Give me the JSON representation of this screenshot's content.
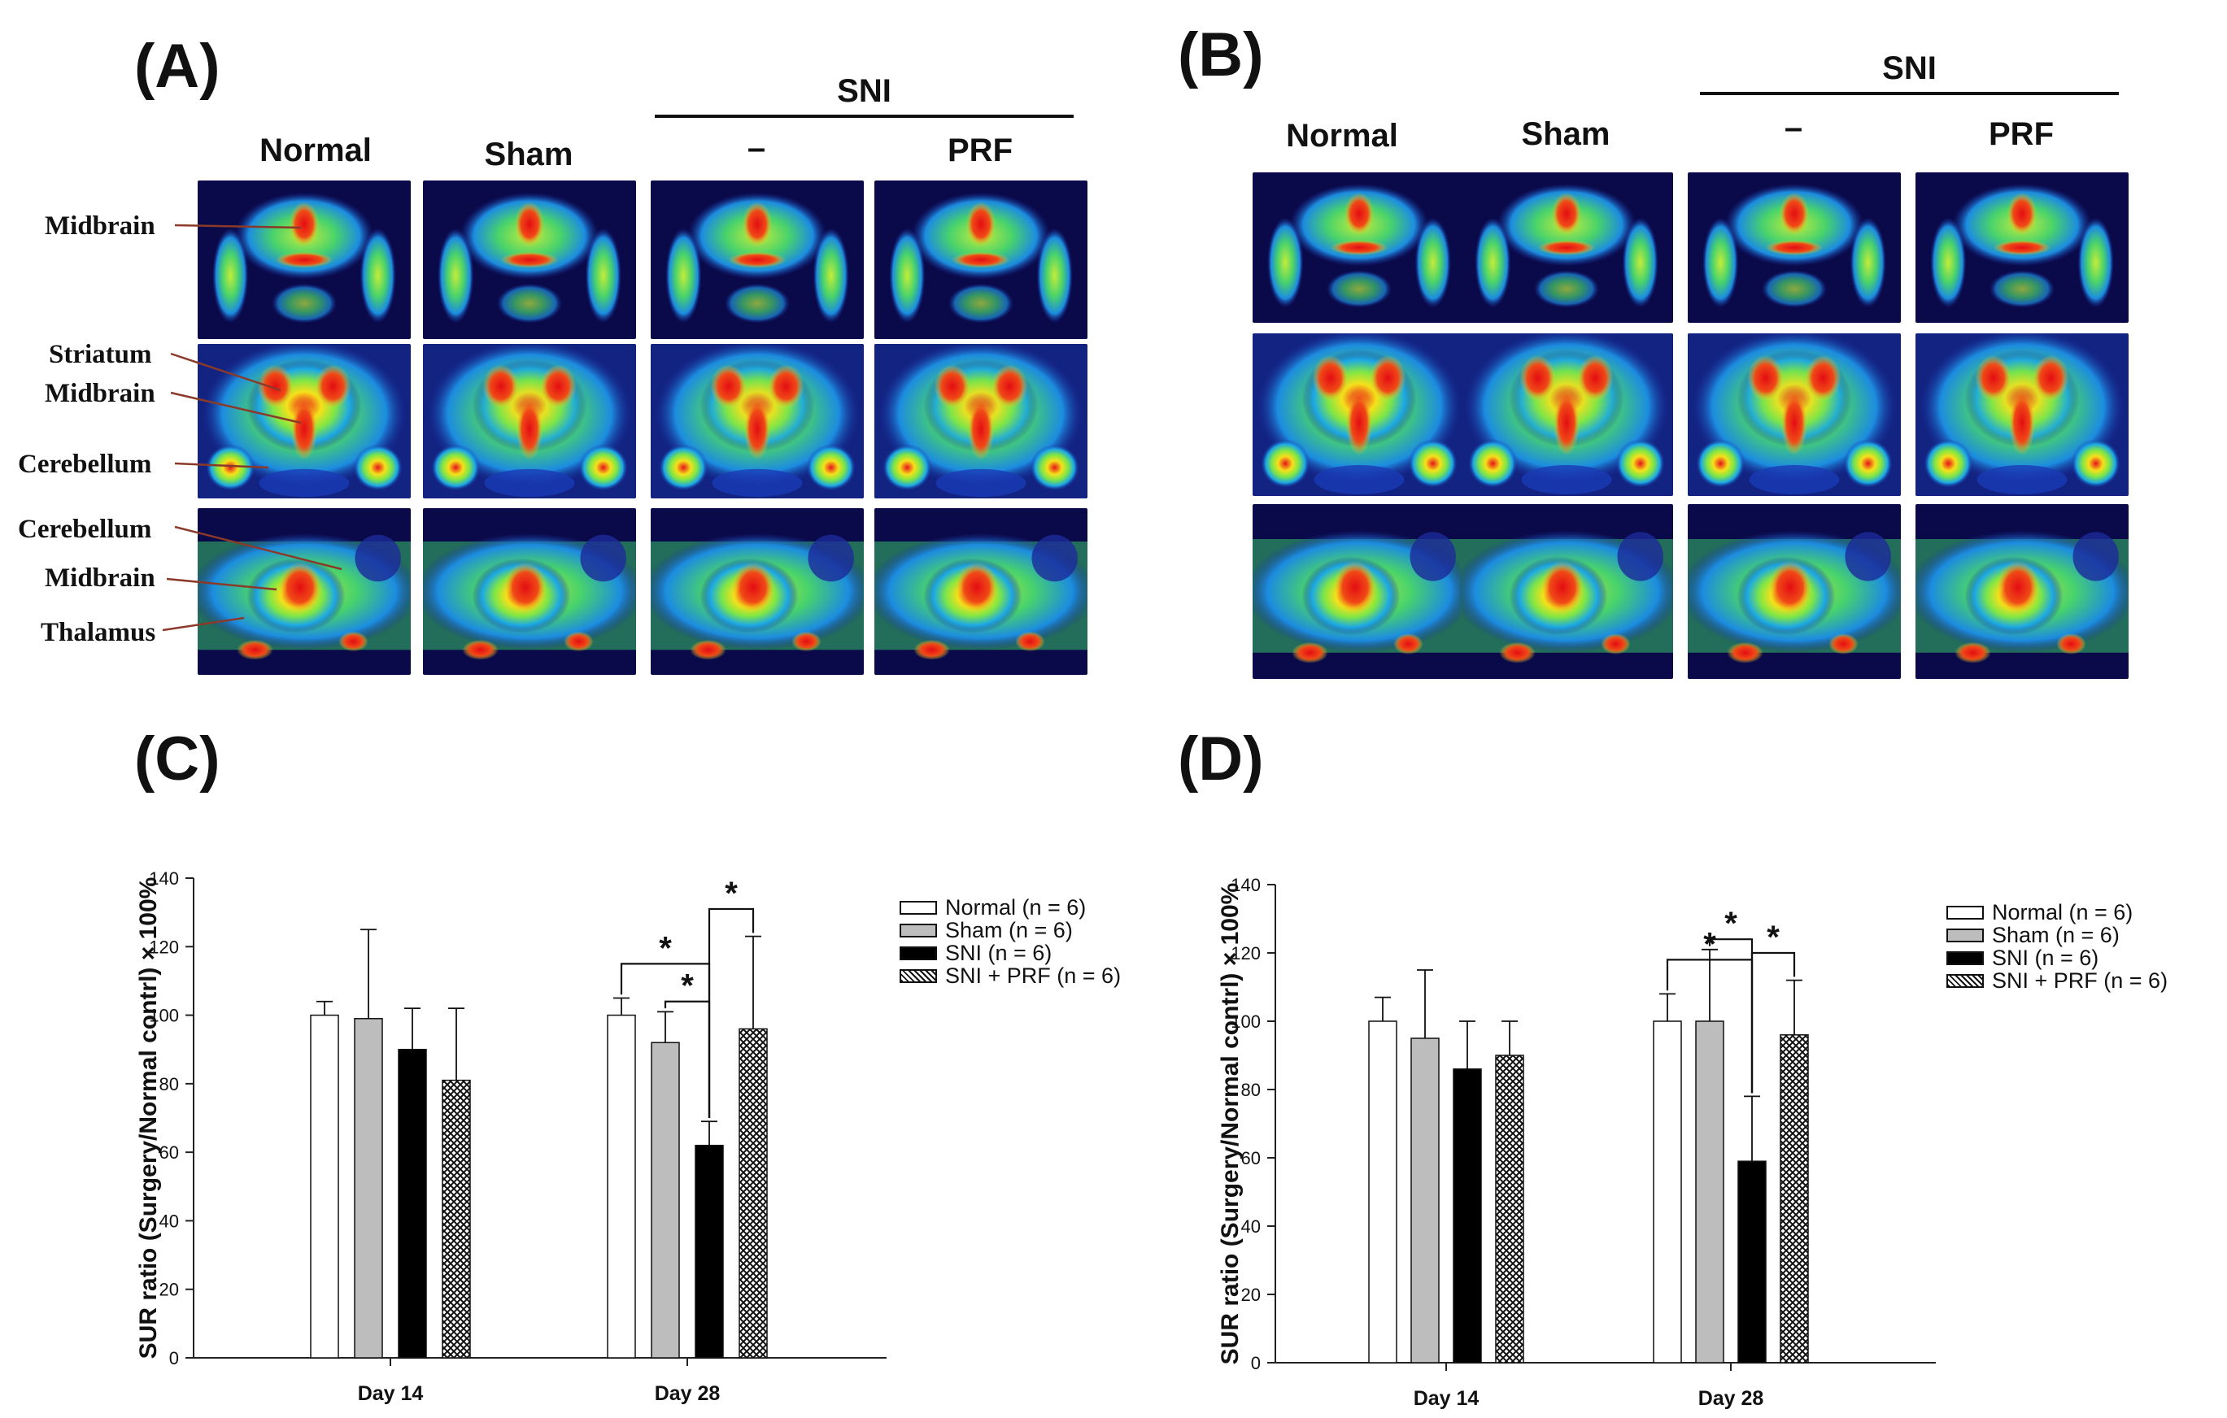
{
  "panels": {
    "a": "(A)",
    "b": "(B)",
    "c": "(C)",
    "d": "(D)"
  },
  "imaging": {
    "columns": [
      "Normal",
      "Sham",
      "–",
      "PRF"
    ],
    "group_header": "SNI",
    "regions": [
      "Midbrain",
      "Striatum",
      "Midbrain",
      "Cerebellum",
      "Cerebellum",
      "Midbrain",
      "Thalamus"
    ]
  },
  "colors": {
    "normal": "#ffffff",
    "sham": "#bdbdbd",
    "sni": "#000000",
    "prf": "#9a9a9a",
    "scan_bg": "#0a0a4a"
  },
  "legend": {
    "normal": "Normal (n = 6)",
    "sham": "Sham (n = 6)",
    "sni": "SNI (n = 6)",
    "prf": "SNI + PRF (n = 6)"
  },
  "chart_data": [
    {
      "type": "bar",
      "panel": "C",
      "ylabel": "SUR ratio (Surgery/Normal contrl) × 100%",
      "xlabel": "",
      "categories": [
        "Day 14",
        "Day 28"
      ],
      "ylim": [
        0,
        140
      ],
      "yticks": [
        0,
        20,
        40,
        60,
        80,
        100,
        120,
        140
      ],
      "series": [
        {
          "name": "Normal (n = 6)",
          "values": [
            100,
            100
          ],
          "errors": [
            4,
            5
          ]
        },
        {
          "name": "Sham (n = 6)",
          "values": [
            99,
            92
          ],
          "errors": [
            26,
            9
          ]
        },
        {
          "name": "SNI (n = 6)",
          "values": [
            90,
            62
          ],
          "errors": [
            12,
            7
          ]
        },
        {
          "name": "SNI + PRF (n = 6)",
          "values": [
            81,
            96
          ],
          "errors": [
            21,
            27
          ]
        }
      ],
      "significance": [
        {
          "category": "Day 28",
          "from": 0,
          "to": 2,
          "label": "*"
        },
        {
          "category": "Day 28",
          "from": 1,
          "to": 2,
          "label": "*"
        },
        {
          "category": "Day 28",
          "from": 2,
          "to": 3,
          "label": "*"
        }
      ]
    },
    {
      "type": "bar",
      "panel": "D",
      "ylabel": "SUR ratio (Surgery/Normal contrl) × 100%",
      "xlabel": "",
      "categories": [
        "Day 14",
        "Day 28"
      ],
      "ylim": [
        0,
        140
      ],
      "yticks": [
        0,
        20,
        40,
        60,
        80,
        100,
        120,
        140
      ],
      "series": [
        {
          "name": "Normal (n = 6)",
          "values": [
            100,
            100
          ],
          "errors": [
            7,
            8
          ]
        },
        {
          "name": "Sham (n = 6)",
          "values": [
            95,
            100
          ],
          "errors": [
            20,
            21
          ]
        },
        {
          "name": "SNI (n = 6)",
          "values": [
            86,
            59
          ],
          "errors": [
            14,
            19
          ]
        },
        {
          "name": "SNI + PRF (n = 6)",
          "values": [
            90,
            96
          ],
          "errors": [
            10,
            16
          ]
        }
      ],
      "significance": [
        {
          "category": "Day 28",
          "from": 0,
          "to": 2,
          "label": "*"
        },
        {
          "category": "Day 28",
          "from": 1,
          "to": 2,
          "label": "*"
        },
        {
          "category": "Day 28",
          "from": 2,
          "to": 3,
          "label": "*"
        }
      ]
    }
  ]
}
